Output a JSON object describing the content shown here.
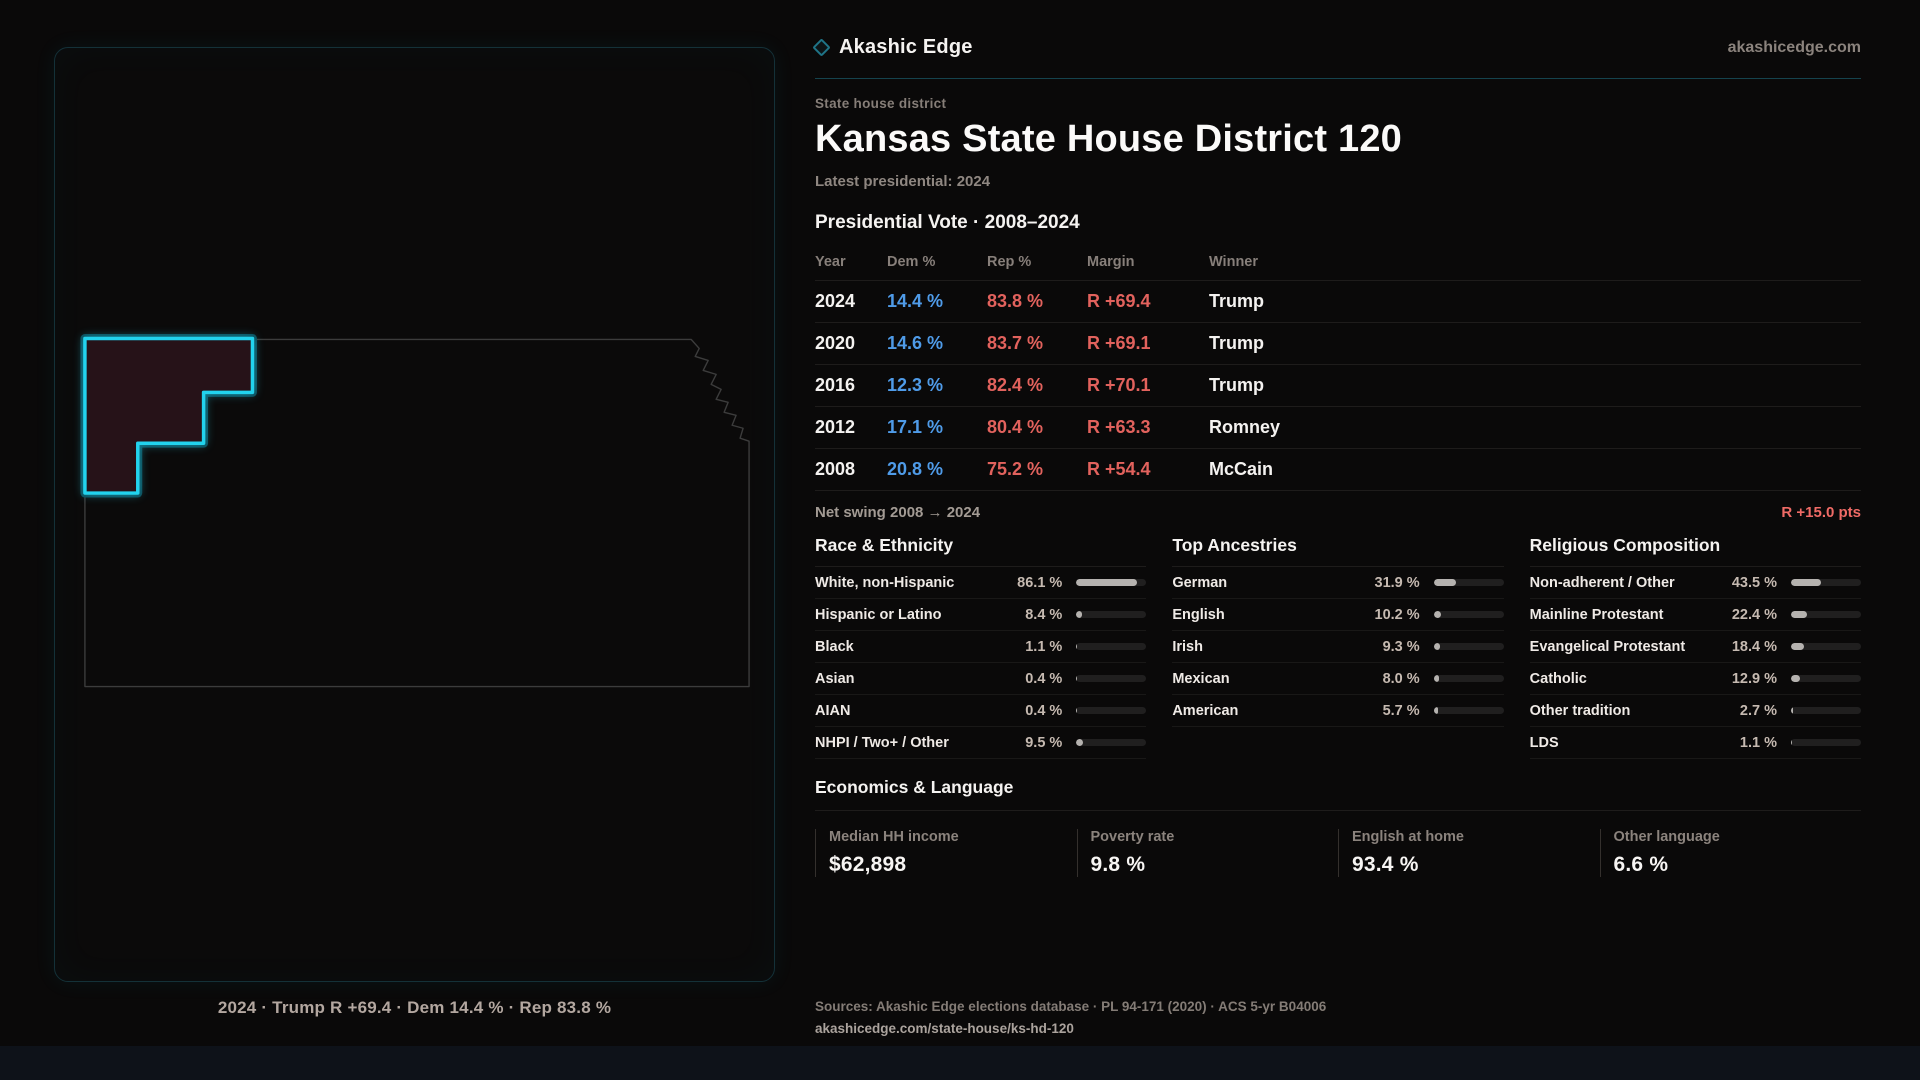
{
  "brand": {
    "name": "Akashic Edge",
    "domain": "akashicedge.com"
  },
  "page": {
    "kicker": "State house district",
    "title": "Kansas State House District 120",
    "latest_line": "Latest presidential: 2024"
  },
  "vote_table": {
    "title": "Presidential Vote · 2008–2024",
    "columns": [
      "Year",
      "Dem %",
      "Rep %",
      "Margin",
      "Winner"
    ],
    "rows": [
      {
        "year": "2024",
        "dem": "14.4 %",
        "rep": "83.8 %",
        "margin": "R +69.4",
        "winner": "Trump"
      },
      {
        "year": "2020",
        "dem": "14.6 %",
        "rep": "83.7 %",
        "margin": "R +69.1",
        "winner": "Trump"
      },
      {
        "year": "2016",
        "dem": "12.3 %",
        "rep": "82.4 %",
        "margin": "R +70.1",
        "winner": "Trump"
      },
      {
        "year": "2012",
        "dem": "17.1 %",
        "rep": "80.4 %",
        "margin": "R +63.3",
        "winner": "Romney"
      },
      {
        "year": "2008",
        "dem": "20.8 %",
        "rep": "75.2 %",
        "margin": "R +54.4",
        "winner": "McCain"
      }
    ],
    "net_swing_label": "Net swing 2008 → 2024",
    "net_swing_value": "R +15.0 pts"
  },
  "demographics": {
    "race": {
      "title": "Race & Ethnicity",
      "rows": [
        {
          "label": "White, non-Hispanic",
          "value": "86.1 %",
          "pct": 86.1
        },
        {
          "label": "Hispanic or Latino",
          "value": "8.4 %",
          "pct": 8.4
        },
        {
          "label": "Black",
          "value": "1.1 %",
          "pct": 1.1
        },
        {
          "label": "Asian",
          "value": "0.4 %",
          "pct": 0.4
        },
        {
          "label": "AIAN",
          "value": "0.4 %",
          "pct": 0.4
        },
        {
          "label": "NHPI / Two+ / Other",
          "value": "9.5 %",
          "pct": 9.5
        }
      ]
    },
    "ancestries": {
      "title": "Top Ancestries",
      "rows": [
        {
          "label": "German",
          "value": "31.9 %",
          "pct": 31.9
        },
        {
          "label": "English",
          "value": "10.2 %",
          "pct": 10.2
        },
        {
          "label": "Irish",
          "value": "9.3 %",
          "pct": 9.3
        },
        {
          "label": "Mexican",
          "value": "8.0 %",
          "pct": 8.0
        },
        {
          "label": "American",
          "value": "5.7 %",
          "pct": 5.7
        }
      ]
    },
    "religion": {
      "title": "Religious Composition",
      "rows": [
        {
          "label": "Non-adherent / Other",
          "value": "43.5 %",
          "pct": 43.5
        },
        {
          "label": "Mainline Protestant",
          "value": "22.4 %",
          "pct": 22.4
        },
        {
          "label": "Evangelical Protestant",
          "value": "18.4 %",
          "pct": 18.4
        },
        {
          "label": "Catholic",
          "value": "12.9 %",
          "pct": 12.9
        },
        {
          "label": "Other tradition",
          "value": "2.7 %",
          "pct": 2.7
        },
        {
          "label": "LDS",
          "value": "1.1 %",
          "pct": 1.1
        }
      ]
    }
  },
  "economics": {
    "title": "Economics & Language",
    "stats": [
      {
        "label": "Median HH income",
        "value": "$62,898"
      },
      {
        "label": "Poverty rate",
        "value": "9.8 %"
      },
      {
        "label": "English at home",
        "value": "93.4 %"
      },
      {
        "label": "Other language",
        "value": "6.6 %"
      }
    ]
  },
  "map": {
    "caption": "2024 · Trump R +69.4 · Dem 14.4 % · Rep 83.8 %"
  },
  "footer": {
    "sources": "Sources: Akashic Edge elections database · PL 94-171 (2020) · ACS 5-yr B04006",
    "permalink": "akashicedge.com/state-house/ks-hd-120"
  },
  "colors": {
    "accent": "#22d3ee",
    "dem": "#4f9be8",
    "rep": "#e2625d",
    "swing": "#f06b66",
    "district_fill": "#261218",
    "state_line": "#3c3c3c",
    "bar_fill": "#b5b2af",
    "bar_track": "#201f1f",
    "panel_border": "#143138",
    "page_bg": "#0a0909",
    "strip_bg": "#0e1219"
  }
}
